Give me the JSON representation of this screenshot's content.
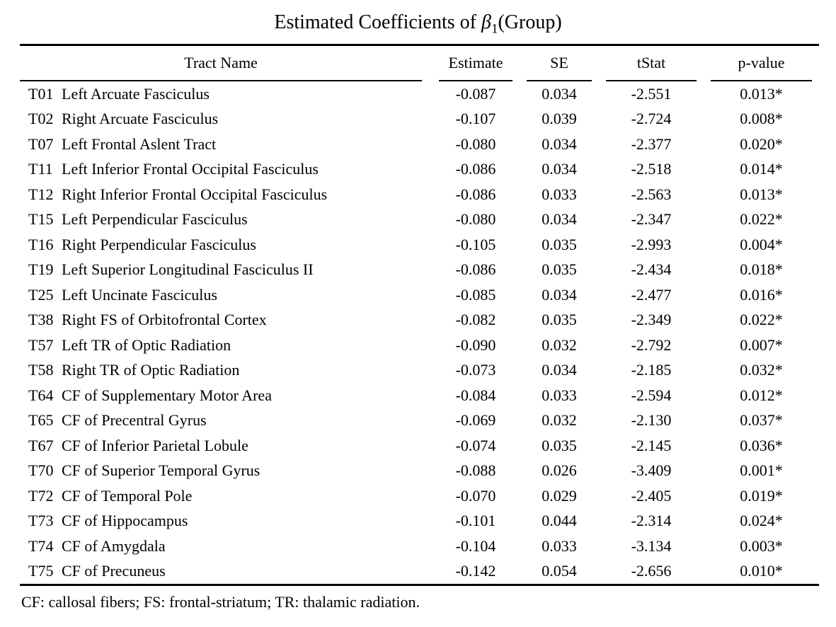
{
  "title": {
    "prefix": "Estimated Coefficients of ",
    "beta": "β",
    "beta_sub": "1",
    "suffix": "(Group)"
  },
  "table": {
    "headers": [
      "Tract Name",
      "Estimate",
      "SE",
      "tStat",
      "p-value"
    ],
    "rows": [
      {
        "id": "T01",
        "name": "Left Arcuate Fasciculus",
        "estimate": "-0.087",
        "se": "0.034",
        "tstat": "-2.551",
        "pvalue": "0.013*"
      },
      {
        "id": "T02",
        "name": "Right Arcuate Fasciculus",
        "estimate": "-0.107",
        "se": "0.039",
        "tstat": "-2.724",
        "pvalue": "0.008*"
      },
      {
        "id": "T07",
        "name": "Left Frontal Aslent Tract",
        "estimate": "-0.080",
        "se": "0.034",
        "tstat": "-2.377",
        "pvalue": "0.020*"
      },
      {
        "id": "T11",
        "name": "Left Inferior Frontal Occipital Fasciculus",
        "estimate": "-0.086",
        "se": "0.034",
        "tstat": "-2.518",
        "pvalue": "0.014*"
      },
      {
        "id": "T12",
        "name": "Right Inferior Frontal Occipital Fasciculus",
        "estimate": "-0.086",
        "se": "0.033",
        "tstat": "-2.563",
        "pvalue": "0.013*"
      },
      {
        "id": "T15",
        "name": "Left Perpendicular Fasciculus",
        "estimate": "-0.080",
        "se": "0.034",
        "tstat": "-2.347",
        "pvalue": "0.022*"
      },
      {
        "id": "T16",
        "name": "Right Perpendicular Fasciculus",
        "estimate": "-0.105",
        "se": "0.035",
        "tstat": "-2.993",
        "pvalue": "0.004*"
      },
      {
        "id": "T19",
        "name": "Left Superior Longitudinal Fasciculus II",
        "estimate": "-0.086",
        "se": "0.035",
        "tstat": "-2.434",
        "pvalue": "0.018*"
      },
      {
        "id": "T25",
        "name": "Left Uncinate Fasciculus",
        "estimate": "-0.085",
        "se": "0.034",
        "tstat": "-2.477",
        "pvalue": "0.016*"
      },
      {
        "id": "T38",
        "name": "Right FS of Orbitofrontal Cortex",
        "estimate": "-0.082",
        "se": "0.035",
        "tstat": "-2.349",
        "pvalue": "0.022*"
      },
      {
        "id": "T57",
        "name": "Left TR of Optic Radiation",
        "estimate": "-0.090",
        "se": "0.032",
        "tstat": "-2.792",
        "pvalue": "0.007*"
      },
      {
        "id": "T58",
        "name": "Right TR of Optic Radiation",
        "estimate": "-0.073",
        "se": "0.034",
        "tstat": "-2.185",
        "pvalue": "0.032*"
      },
      {
        "id": "T64",
        "name": "CF of Supplementary Motor Area",
        "estimate": "-0.084",
        "se": "0.033",
        "tstat": "-2.594",
        "pvalue": "0.012*"
      },
      {
        "id": "T65",
        "name": "CF of Precentral Gyrus",
        "estimate": "-0.069",
        "se": "0.032",
        "tstat": "-2.130",
        "pvalue": "0.037*"
      },
      {
        "id": "T67",
        "name": "CF of Inferior Parietal Lobule",
        "estimate": "-0.074",
        "se": "0.035",
        "tstat": "-2.145",
        "pvalue": "0.036*"
      },
      {
        "id": "T70",
        "name": "CF of Superior Temporal Gyrus",
        "estimate": "-0.088",
        "se": "0.026",
        "tstat": "-3.409",
        "pvalue": "0.001*"
      },
      {
        "id": "T72",
        "name": "CF of Temporal Pole",
        "estimate": "-0.070",
        "se": "0.029",
        "tstat": "-2.405",
        "pvalue": "0.019*"
      },
      {
        "id": "T73",
        "name": "CF of Hippocampus",
        "estimate": "-0.101",
        "se": "0.044",
        "tstat": "-2.314",
        "pvalue": "0.024*"
      },
      {
        "id": "T74",
        "name": "CF of Amygdala",
        "estimate": "-0.104",
        "se": "0.033",
        "tstat": "-3.134",
        "pvalue": "0.003*"
      },
      {
        "id": "T75",
        "name": "CF of Precuneus",
        "estimate": "-0.142",
        "se": "0.054",
        "tstat": "-2.656",
        "pvalue": "0.010*"
      }
    ]
  },
  "footnote": "CF: callosal fibers; FS: frontal-striatum; TR: thalamic radiation.",
  "colors": {
    "text": "#000000",
    "background": "#ffffff",
    "rule": "#000000"
  }
}
